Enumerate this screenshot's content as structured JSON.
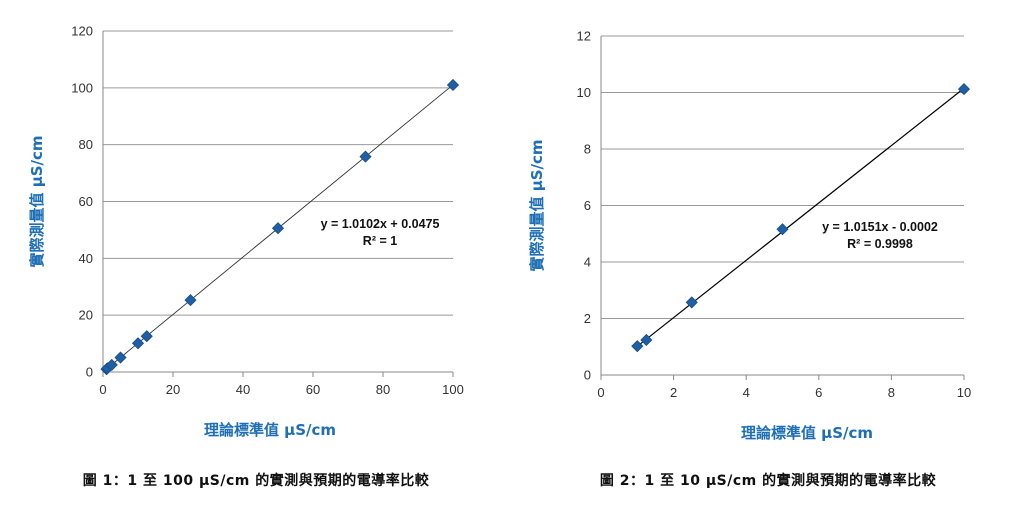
{
  "chart_data": [
    {
      "type": "scatter",
      "xlabel": "理論標準值  μS/cm",
      "ylabel": "實際測量值  μS/cm",
      "xlim": [
        0,
        100
      ],
      "ylim": [
        0,
        120
      ],
      "xticks": [
        0,
        20,
        40,
        60,
        80,
        100
      ],
      "yticks": [
        0,
        20,
        40,
        60,
        80,
        100,
        120
      ],
      "grid": "horizontal",
      "marker_color": "#1f5fa6",
      "trendline_color": "#333333",
      "points": [
        {
          "x": 1,
          "y": 1
        },
        {
          "x": 1.25,
          "y": 1.3
        },
        {
          "x": 2.5,
          "y": 2.5
        },
        {
          "x": 5,
          "y": 5.1
        },
        {
          "x": 10,
          "y": 10.1
        },
        {
          "x": 12.5,
          "y": 12.6
        },
        {
          "x": 25,
          "y": 25.3
        },
        {
          "x": 50,
          "y": 50.6
        },
        {
          "x": 75,
          "y": 75.8
        },
        {
          "x": 100,
          "y": 101
        }
      ],
      "trendline": {
        "slope": 1.0102,
        "intercept": 0.0475,
        "x_range": [
          0,
          100
        ]
      },
      "equation": "y = 1.0102x + 0.0475",
      "r_squared": "R² = 1",
      "caption": "圖 1：1 至 100 μS/cm 的實測與預期的電導率比較"
    },
    {
      "type": "scatter",
      "xlabel": "理論標準值  μS/cm",
      "ylabel": "實際測量值  μS/cm",
      "xlim": [
        0,
        10
      ],
      "ylim": [
        0,
        12
      ],
      "xticks": [
        0,
        2,
        4,
        6,
        8,
        10
      ],
      "yticks": [
        0,
        2,
        4,
        6,
        8,
        10,
        12
      ],
      "grid": "horizontal",
      "marker_color": "#1f5fa6",
      "trendline_color": "#000000",
      "points": [
        {
          "x": 1,
          "y": 1.02
        },
        {
          "x": 1.25,
          "y": 1.24
        },
        {
          "x": 2.5,
          "y": 2.57
        },
        {
          "x": 5,
          "y": 5.16
        },
        {
          "x": 10,
          "y": 10.12
        }
      ],
      "trendline": {
        "slope": 1.0151,
        "intercept": -0.0002,
        "x_range": [
          1,
          10
        ]
      },
      "equation": "y = 1.0151x - 0.0002",
      "r_squared": "R² = 0.9998",
      "caption": "圖 2：1 至 10 μS/cm 的實測與預期的電導率比較"
    }
  ]
}
